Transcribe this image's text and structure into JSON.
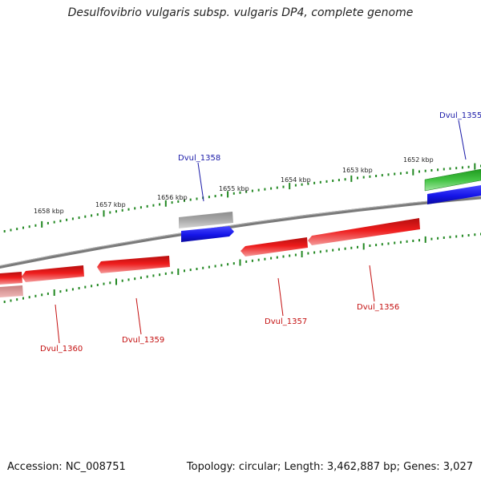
{
  "title": "Desulfovibrio vulgaris subsp. vulgaris DP4, complete genome",
  "footer": {
    "accession": "Accession: NC_008751",
    "summary": "Topology: circular; Length: 3,462,887 bp; Genes: 3,027"
  },
  "colors": {
    "forward_gene": "#2222ee",
    "forward_gene_alt": "#33bb33",
    "pseudo_gene": "#a0a0a0",
    "reverse_gene": "#e41a1a",
    "reverse_gene_faded": "#ec7a7a",
    "backbone": "#777777",
    "tick": "#228822",
    "forward_label": "#1a1aa8",
    "reverse_label": "#c41010"
  },
  "scale": {
    "unit": "kbp",
    "labels": [
      "1652 kbp",
      "1653 kbp",
      "1654 kbp",
      "1655 kbp",
      "1656 kbp",
      "1657 kbp",
      "1658 kbp"
    ]
  },
  "genes": [
    {
      "id": "Dvul_1355",
      "strand": "forward",
      "color_key": "forward_gene_alt"
    },
    {
      "id": "Dvul_1356",
      "strand": "reverse",
      "color_key": "reverse_gene"
    },
    {
      "id": "Dvul_1357",
      "strand": "reverse",
      "color_key": "reverse_gene"
    },
    {
      "id": "Dvul_1358",
      "strand": "forward",
      "color_key": "forward_gene"
    },
    {
      "id": "Dvul_1359",
      "strand": "reverse",
      "color_key": "reverse_gene"
    },
    {
      "id": "Dvul_1360",
      "strand": "reverse",
      "color_key": "reverse_gene"
    }
  ]
}
